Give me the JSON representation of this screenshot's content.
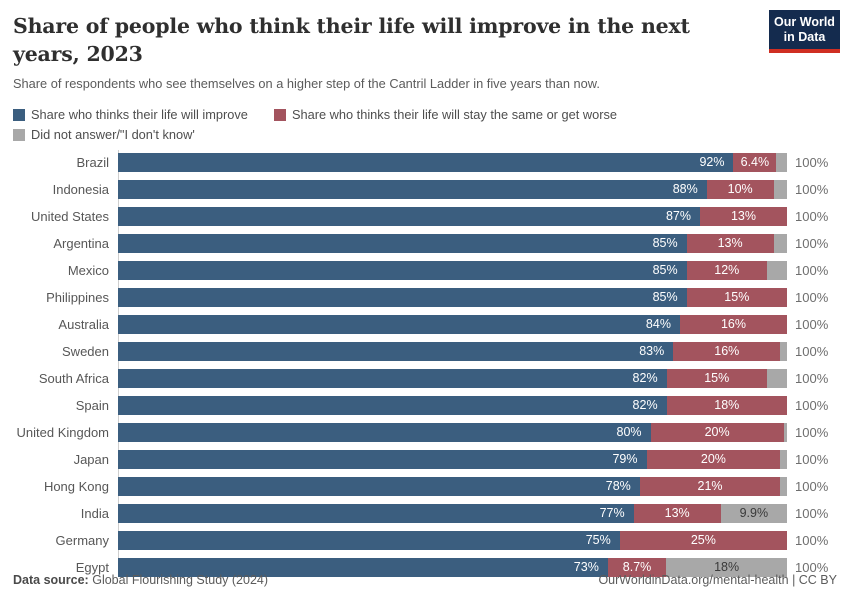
{
  "header": {
    "title": "Share of people who think their life will improve in the next years, 2023",
    "subtitle": "Share of respondents who see themselves on a higher step of the Cantril Ladder in five years than now.",
    "logo": {
      "line1": "Our World",
      "line2": "in Data",
      "bg_color": "#142b4e",
      "accent_color": "#cf2e22"
    }
  },
  "legend": {
    "items": [
      {
        "key": "improve",
        "label": "Share who thinks their life will improve",
        "color": "#3b5e7f"
      },
      {
        "key": "worse",
        "label": "Share who thinks their life will stay the same or get worse",
        "color": "#a3545e"
      },
      {
        "key": "noans",
        "label": "Did not answer/\"I don't know'",
        "color": "#a8a8a8"
      }
    ]
  },
  "chart_data": {
    "type": "bar",
    "stacked": true,
    "orientation": "horizontal",
    "unit": "%",
    "xlim": [
      0,
      100
    ],
    "grid": false,
    "total_label": "100%",
    "categories": [
      "Brazil",
      "Indonesia",
      "United States",
      "Argentina",
      "Mexico",
      "Philippines",
      "Australia",
      "Sweden",
      "South Africa",
      "Spain",
      "United Kingdom",
      "Japan",
      "Hong Kong",
      "India",
      "Germany",
      "Egypt"
    ],
    "series": [
      {
        "name": "Share who thinks their life will improve",
        "key": "improve",
        "color": "#3b5e7f",
        "values": [
          92,
          88,
          87,
          85,
          85,
          85,
          84,
          83,
          82,
          82,
          80,
          79,
          78,
          77,
          75,
          73
        ],
        "labels": [
          "92%",
          "88%",
          "87%",
          "85%",
          "85%",
          "85%",
          "84%",
          "83%",
          "82%",
          "82%",
          "80%",
          "79%",
          "78%",
          "77%",
          "75%",
          "73%"
        ]
      },
      {
        "name": "Share who thinks their life will stay the same or get worse",
        "key": "worse",
        "color": "#a3545e",
        "values": [
          6.4,
          10,
          13,
          13,
          12,
          15,
          16,
          16,
          15,
          18,
          20,
          20,
          21,
          13,
          25,
          8.7
        ],
        "labels": [
          "6.4%",
          "10%",
          "13%",
          "13%",
          "12%",
          "15%",
          "16%",
          "16%",
          "15%",
          "18%",
          "20%",
          "20%",
          "21%",
          "13%",
          "25%",
          "8.7%"
        ]
      },
      {
        "name": "Did not answer/\"I don't know'",
        "key": "noans",
        "color": "#a8a8a8",
        "values": [
          1.6,
          2,
          0,
          2,
          3,
          0,
          0,
          1,
          3,
          0,
          0.5,
          1,
          1,
          9.9,
          0,
          18
        ],
        "labels": [
          "",
          "",
          "",
          "",
          "",
          "",
          "",
          "",
          "",
          "",
          "",
          "",
          "",
          "9.9%",
          "",
          "18%"
        ]
      }
    ]
  },
  "footer": {
    "source_label": "Data source:",
    "source_value": "Global Flourishing Study (2024)",
    "link": "OurWorldinData.org/mental-health | CC BY"
  }
}
